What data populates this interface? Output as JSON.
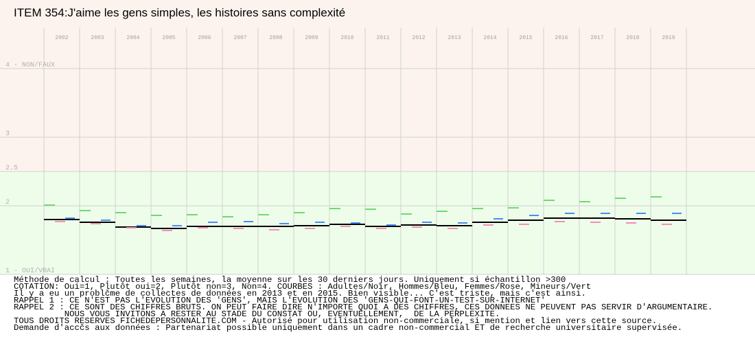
{
  "chart_data": {
    "type": "dash",
    "title": "ITEM 354:J'aime les gens simples, les histoires sans complexité",
    "categories": [
      "2002",
      "2003",
      "2004",
      "2005",
      "2006",
      "2007",
      "2008",
      "2009",
      "2010",
      "2011",
      "2012",
      "2013",
      "2014",
      "2015",
      "2016",
      "2017",
      "2018",
      "2019"
    ],
    "series": [
      {
        "color": "#000000",
        "values": [
          1.8,
          1.76,
          1.69,
          1.67,
          1.7,
          1.7,
          1.7,
          1.71,
          1.73,
          1.7,
          1.72,
          1.71,
          1.76,
          1.79,
          1.82,
          1.82,
          1.81,
          1.79
        ]
      },
      {
        "color": "#4a8cf0",
        "values": [
          1.82,
          1.79,
          1.71,
          1.71,
          1.76,
          1.77,
          1.74,
          1.76,
          1.75,
          1.72,
          1.76,
          1.75,
          1.81,
          1.86,
          1.89,
          1.89,
          1.89,
          1.89
        ]
      },
      {
        "color": "#f090b8",
        "values": [
          1.77,
          1.74,
          1.68,
          1.64,
          1.68,
          1.67,
          1.65,
          1.67,
          1.7,
          1.67,
          1.69,
          1.67,
          1.72,
          1.73,
          1.77,
          1.76,
          1.75,
          1.73
        ]
      },
      {
        "color": "#70d870",
        "values": [
          2.01,
          1.93,
          1.9,
          1.86,
          1.87,
          1.84,
          1.87,
          1.9,
          1.96,
          1.95,
          1.88,
          1.92,
          1.96,
          1.97,
          2.08,
          2.06,
          2.11,
          2.13
        ]
      }
    ],
    "ylim": [
      1,
      4
    ],
    "yticks": [
      {
        "value": 1,
        "label": "1 - OUI/VRAI"
      },
      2,
      2.5,
      3,
      {
        "value": 4,
        "label": "4 - NON/FAUX"
      }
    ],
    "grid": true,
    "notes": [
      "Méthode de calcul : Toutes les semaines, la moyenne sur les 30 derniers jours. Uniquement si échantillon >300",
      "COTATION: Oui=1, Plutôt oui=2, Plutôt non=3, Non=4. COURBES : Adultes/Noir, Hommes/Bleu, Femmes/Rose, Mineurs/Vert",
      "Il y a eu un problčme de collectes de données en 2013 et en 2015. Bien visible... C'est triste, mais c'est ainsi.",
      "RAPPEL 1 : CE N'EST PAS L'EVOLUTION DES 'GENS', MAIS L'EVOLUTION DES 'GENS-QUI-FONT-UN-TEST-SUR-INTERNET'",
      "RAPPEL 2 : CE SONT DES CHIFFRES BRUTS. ON PEUT FAIRE DIRE N'IMPORTE QUOI A DES CHIFFRES, CES DONNEES NE PEUVENT PAS SERVIR D'ARGUMENTAIRE.",
      "          NOUS VOUS INVITONS A RESTER AU STADE DU CONSTAT OU, EVENTUELLEMENT,  DE LA PERPLEXITE.",
      "TOUS DROITS RESERVES FICHEDEPERSONNALITE.COM - Autorisé pour utilisation non-commerciale, si mention et lien vers cette source.",
      "Demande d'accčs aux données : Partenariat possible uniquement dans un cadre non-commercial ET de recherche universitaire supervisée."
    ]
  }
}
